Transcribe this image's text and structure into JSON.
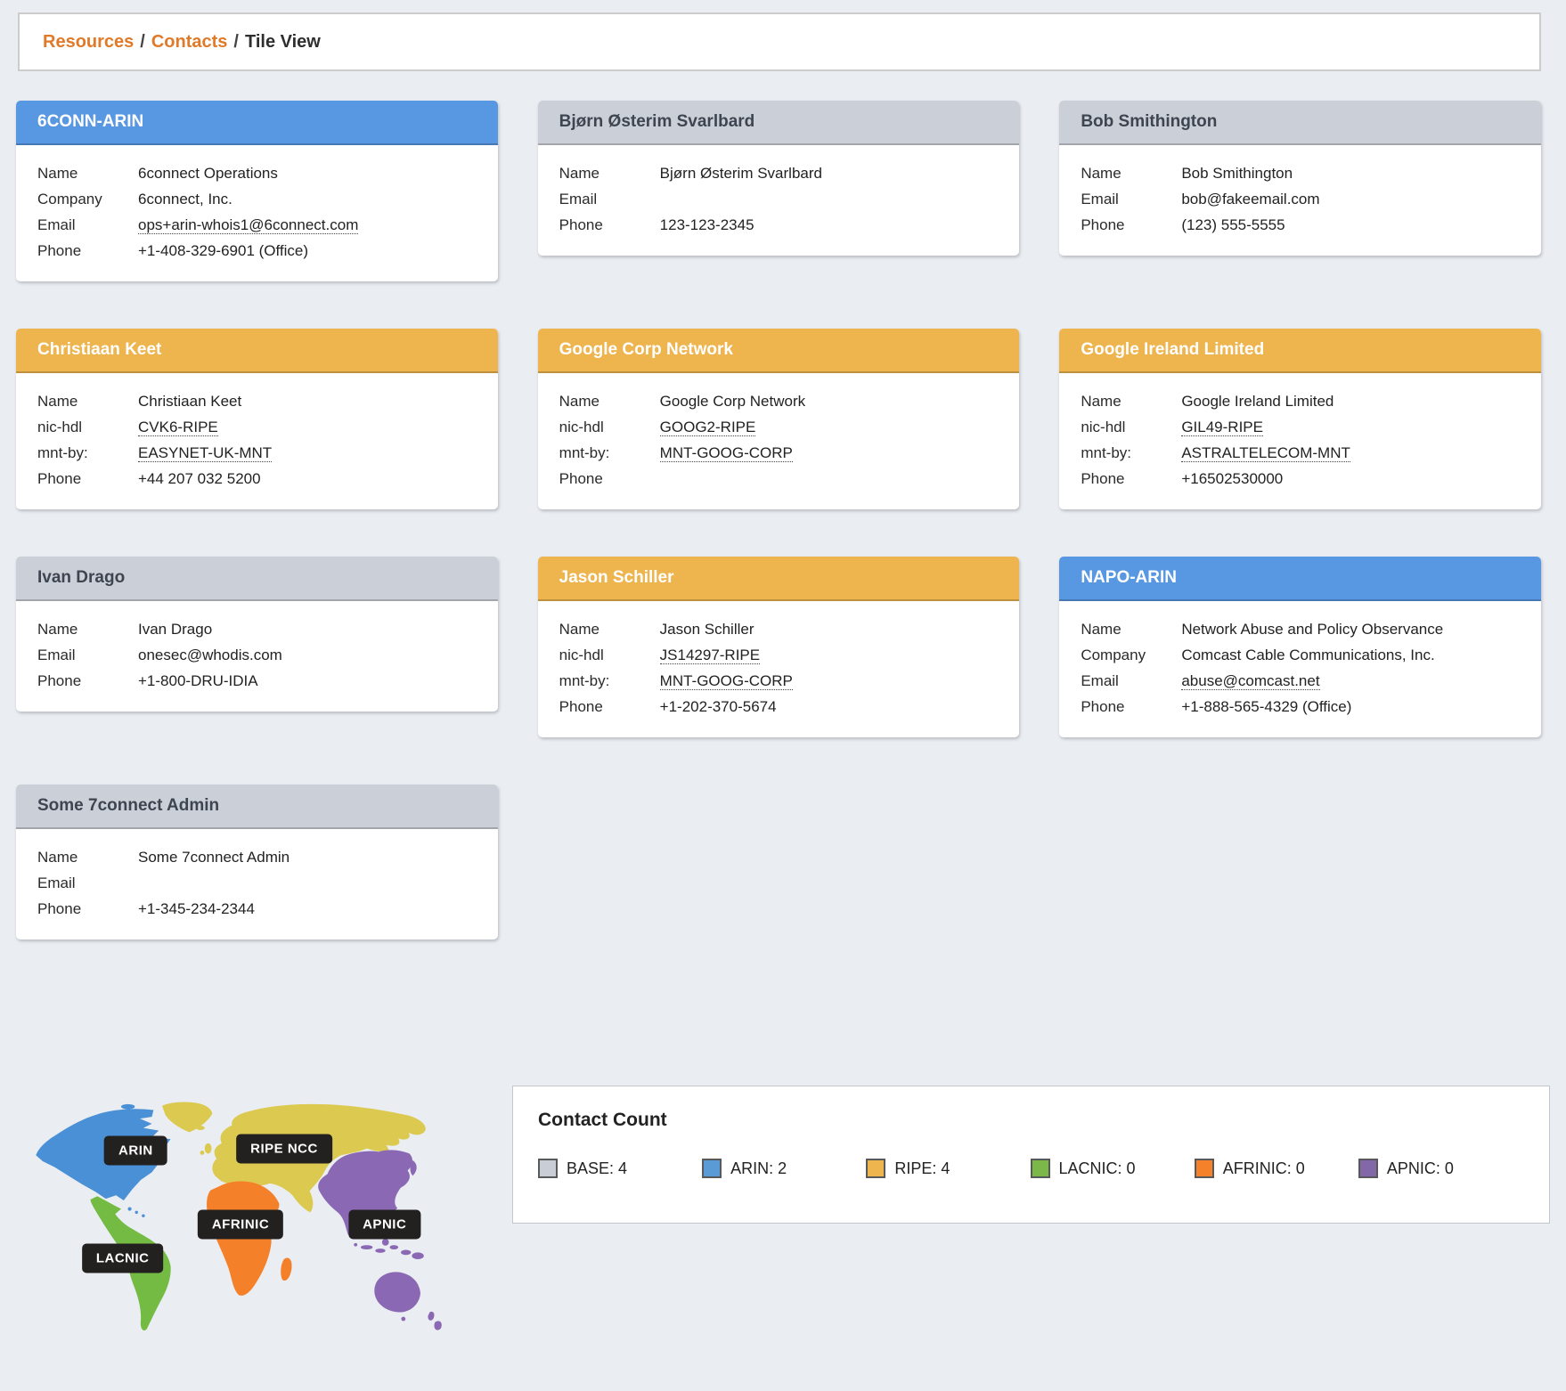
{
  "breadcrumb": {
    "separator": "/",
    "link_color": "#e07a28",
    "items": [
      {
        "label": "Resources",
        "link": true
      },
      {
        "label": "Contacts",
        "link": true
      },
      {
        "label": "Tile View",
        "link": false
      }
    ]
  },
  "registry_colors": {
    "base": "#cbcfd7",
    "arin": "#5897e1",
    "ripe": "#eeb44e"
  },
  "cards": [
    {
      "title": "6CONN-ARIN",
      "registry": "arin",
      "fields": [
        {
          "label": "Name",
          "value": "6connect Operations",
          "link": false
        },
        {
          "label": "Company",
          "value": "6connect, Inc.",
          "link": false
        },
        {
          "label": "Email",
          "value": "ops+arin-whois1@6connect.com",
          "link": true
        },
        {
          "label": "Phone",
          "value": "+1-408-329-6901 (Office)",
          "link": false
        }
      ]
    },
    {
      "title": "Bjørn Østerim Svarlbard",
      "registry": "base",
      "fields": [
        {
          "label": "Name",
          "value": "Bjørn Østerim Svarlbard",
          "link": false
        },
        {
          "label": "Email",
          "value": "",
          "link": false
        },
        {
          "label": "Phone",
          "value": "123-123-2345",
          "link": false
        }
      ]
    },
    {
      "title": "Bob Smithington",
      "registry": "base",
      "fields": [
        {
          "label": "Name",
          "value": "Bob Smithington",
          "link": false
        },
        {
          "label": "Email",
          "value": "bob@fakeemail.com",
          "link": false
        },
        {
          "label": "Phone",
          "value": "(123) 555-5555",
          "link": false
        }
      ]
    },
    {
      "title": "Christiaan Keet",
      "registry": "ripe",
      "fields": [
        {
          "label": "Name",
          "value": "Christiaan Keet",
          "link": false
        },
        {
          "label": "nic-hdl",
          "value": "CVK6-RIPE",
          "link": true
        },
        {
          "label": "mnt-by:",
          "value": "EASYNET-UK-MNT",
          "link": true
        },
        {
          "label": "Phone",
          "value": "+44 207 032 5200",
          "link": false
        }
      ]
    },
    {
      "title": "Google Corp Network",
      "registry": "ripe",
      "fields": [
        {
          "label": "Name",
          "value": "Google Corp Network",
          "link": false
        },
        {
          "label": "nic-hdl",
          "value": "GOOG2-RIPE",
          "link": true
        },
        {
          "label": "mnt-by:",
          "value": "MNT-GOOG-CORP",
          "link": true
        },
        {
          "label": "Phone",
          "value": "",
          "link": false
        }
      ]
    },
    {
      "title": "Google Ireland Limited",
      "registry": "ripe",
      "fields": [
        {
          "label": "Name",
          "value": "Google Ireland Limited",
          "link": false
        },
        {
          "label": "nic-hdl",
          "value": "GIL49-RIPE",
          "link": true
        },
        {
          "label": "mnt-by:",
          "value": "ASTRALTELECOM-MNT",
          "link": true
        },
        {
          "label": "Phone",
          "value": "+16502530000",
          "link": false
        }
      ]
    },
    {
      "title": "Ivan Drago",
      "registry": "base",
      "fields": [
        {
          "label": "Name",
          "value": "Ivan Drago",
          "link": false
        },
        {
          "label": "Email",
          "value": "onesec@whodis.com",
          "link": false
        },
        {
          "label": "Phone",
          "value": "+1-800-DRU-IDIA",
          "link": false
        }
      ]
    },
    {
      "title": "Jason Schiller",
      "registry": "ripe",
      "fields": [
        {
          "label": "Name",
          "value": "Jason Schiller",
          "link": false
        },
        {
          "label": "nic-hdl",
          "value": "JS14297-RIPE",
          "link": true
        },
        {
          "label": "mnt-by:",
          "value": "MNT-GOOG-CORP",
          "link": true
        },
        {
          "label": "Phone",
          "value": "+1-202-370-5674",
          "link": false
        }
      ]
    },
    {
      "title": "NAPO-ARIN",
      "registry": "arin",
      "fields": [
        {
          "label": "Name",
          "value": "Network Abuse and Policy Observance",
          "link": false
        },
        {
          "label": "Company",
          "value": "Comcast Cable Communications, Inc.",
          "link": false
        },
        {
          "label": "Email",
          "value": "abuse@comcast.net",
          "link": true
        },
        {
          "label": "Phone",
          "value": "+1-888-565-4329 (Office)",
          "link": false
        }
      ]
    },
    {
      "title": "Some 7connect Admin",
      "registry": "base",
      "fields": [
        {
          "label": "Name",
          "value": "Some 7connect Admin",
          "link": false
        },
        {
          "label": "Email",
          "value": "",
          "link": false
        },
        {
          "label": "Phone",
          "value": "+1-345-234-2344",
          "link": false
        }
      ]
    }
  ],
  "map": {
    "badges": [
      "ARIN",
      "RIPE NCC",
      "AFRINIC",
      "LACNIC",
      "APNIC"
    ],
    "colors": {
      "arin": "#4a90d6",
      "ripe": "#dcc94f",
      "lacnic": "#74bb44",
      "afrinic": "#f5802a",
      "apnic": "#8a68b4"
    }
  },
  "contact_count": {
    "title": "Contact Count",
    "legend": [
      {
        "label": "BASE",
        "count": 4,
        "color": "#c9cdd5"
      },
      {
        "label": "ARIN",
        "count": 2,
        "color": "#5b9bd5"
      },
      {
        "label": "RIPE",
        "count": 4,
        "color": "#eeb44e"
      },
      {
        "label": "LACNIC",
        "count": 0,
        "color": "#7cb749"
      },
      {
        "label": "AFRINIC",
        "count": 0,
        "color": "#f5822a"
      },
      {
        "label": "APNIC",
        "count": 0,
        "color": "#8268a9"
      }
    ]
  }
}
